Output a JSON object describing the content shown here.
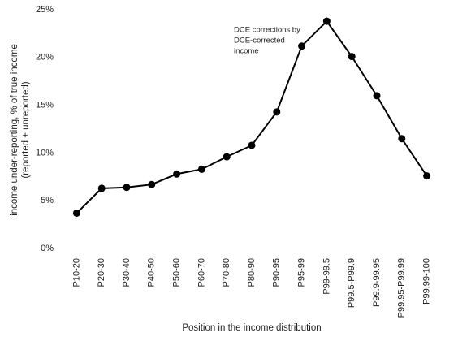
{
  "chart_data": {
    "type": "line",
    "ylabel": [
      "income under-reporting, % of true income",
      "(reported + unreported)"
    ],
    "xlabel": "Position in the income distribution",
    "annotation": [
      "DCE corrections by",
      "DCE-corrected",
      "income"
    ],
    "categories": [
      "P10-20",
      "P20-30",
      "P30-40",
      "P40-50",
      "P50-60",
      "P60-70",
      "P70-80",
      "P80-90",
      "P90-95",
      "P95-99",
      "P99-99.5",
      "P99.5-P99.9",
      "P99.9-99.95",
      "P99.95-P99.99",
      "P99.99-100"
    ],
    "values": [
      3.7,
      6.3,
      6.4,
      6.7,
      7.8,
      8.3,
      9.6,
      10.8,
      14.3,
      21.2,
      23.8,
      20.1,
      16.0,
      11.5,
      7.6
    ],
    "color": "#000000",
    "ylim": [
      0,
      25
    ],
    "yticks": [
      {
        "value": 0,
        "label": "0%"
      },
      {
        "value": 5,
        "label": "5%"
      },
      {
        "value": 10,
        "label": "10%"
      },
      {
        "value": 15,
        "label": "15%"
      },
      {
        "value": 20,
        "label": "20%"
      },
      {
        "value": 25,
        "label": "25%"
      }
    ],
    "grid": false
  }
}
